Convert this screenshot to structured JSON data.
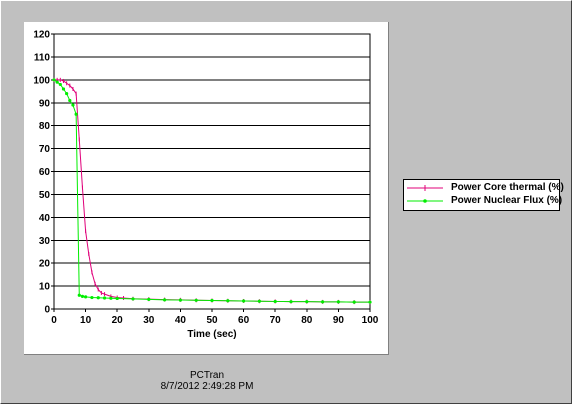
{
  "chart_data": {
    "type": "line",
    "xlabel": "Time (sec)",
    "ylabel": "",
    "xlim": [
      0,
      100
    ],
    "ylim": [
      0,
      120
    ],
    "x_ticks": [
      0,
      10,
      20,
      30,
      40,
      50,
      60,
      70,
      80,
      90,
      100
    ],
    "y_ticks": [
      0,
      10,
      20,
      30,
      40,
      50,
      60,
      70,
      80,
      90,
      100,
      110,
      120
    ],
    "grid": "horizontal",
    "legend_position": "right",
    "series": [
      {
        "name": "Power Core thermal (%)",
        "color": "#e0007a",
        "marker": "+",
        "x": [
          0,
          1,
          2,
          3,
          4,
          5,
          6,
          7,
          8,
          9,
          10,
          11,
          12,
          13,
          14,
          15,
          16,
          18,
          20,
          22,
          25,
          30,
          35,
          40,
          45,
          50,
          55,
          60,
          65,
          70,
          75,
          80,
          85,
          90,
          95,
          100
        ],
        "y": [
          100,
          100,
          100,
          99.5,
          98.5,
          97.5,
          96,
          94,
          74,
          53,
          34,
          24,
          16,
          11,
          8.5,
          7,
          6.5,
          5.5,
          5,
          4.8,
          4.5,
          4.3,
          4.1,
          4.0,
          3.8,
          3.7,
          3.6,
          3.5,
          3.4,
          3.3,
          3.2,
          3.2,
          3.1,
          3.1,
          3.0,
          3.0
        ]
      },
      {
        "name": "Power Nuclear Flux (%)",
        "color": "#00ee00",
        "marker": "dot",
        "x": [
          0,
          1,
          2,
          3,
          4,
          5,
          6,
          7,
          8,
          9,
          10,
          12,
          14,
          16,
          18,
          20,
          25,
          30,
          35,
          40,
          45,
          50,
          55,
          60,
          65,
          70,
          75,
          80,
          85,
          90,
          95,
          100
        ],
        "y": [
          100,
          99,
          98,
          96,
          94,
          91,
          89,
          85,
          6,
          5.5,
          5.3,
          5,
          4.9,
          4.8,
          4.7,
          4.6,
          4.4,
          4.2,
          4.0,
          3.9,
          3.8,
          3.7,
          3.6,
          3.5,
          3.4,
          3.3,
          3.2,
          3.2,
          3.1,
          3.1,
          3.0,
          3.0
        ]
      }
    ]
  },
  "legend": {
    "items": [
      {
        "label": "Power Core thermal (%)",
        "color": "#e0007a"
      },
      {
        "label": "Power Nuclear Flux (%)",
        "color": "#00ee00"
      }
    ]
  },
  "footer": {
    "app_name": "PCTran",
    "timestamp": "8/7/2012 2:49:28 PM"
  }
}
